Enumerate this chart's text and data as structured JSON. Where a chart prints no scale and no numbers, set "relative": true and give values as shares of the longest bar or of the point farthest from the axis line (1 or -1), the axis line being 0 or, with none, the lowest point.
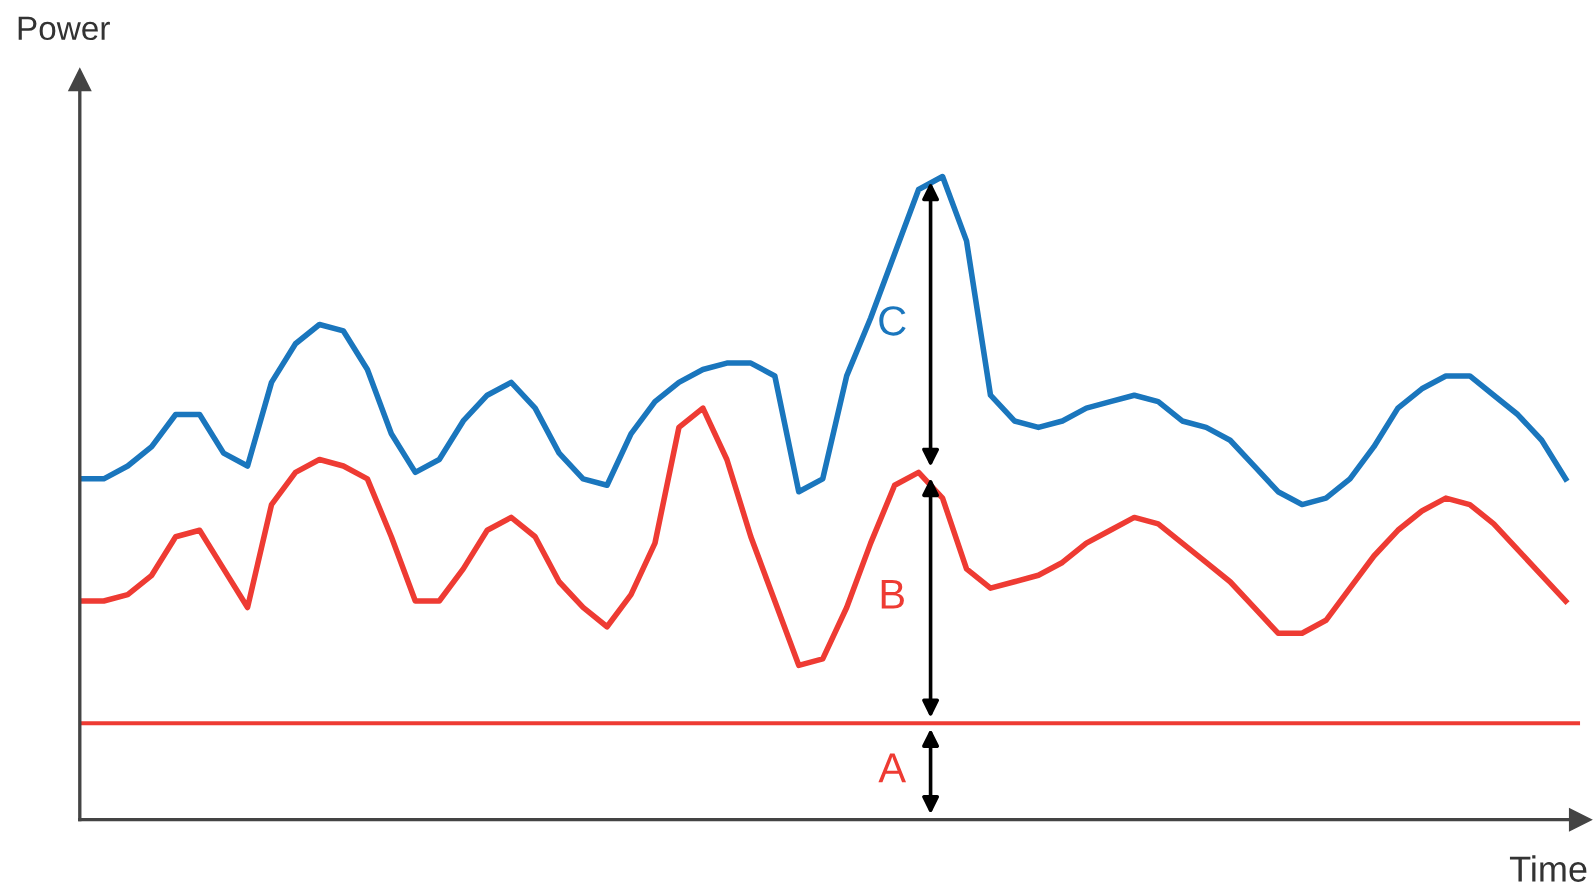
{
  "chart_data": {
    "type": "line",
    "relative": true,
    "xlabel": "Time",
    "ylabel": "Power",
    "categories": [
      null,
      null,
      null,
      null,
      null,
      null,
      null,
      null,
      null,
      null,
      null,
      null,
      null,
      null,
      null,
      null,
      null,
      null,
      null,
      null,
      null,
      null,
      null,
      null,
      null,
      null,
      null,
      null,
      null,
      null,
      null,
      null,
      null,
      null,
      null,
      null,
      null,
      null,
      null,
      null,
      null,
      null,
      null,
      null,
      null,
      null,
      null,
      null,
      null,
      null,
      null,
      null,
      null,
      null,
      null,
      null,
      null,
      null,
      null,
      null,
      null,
      null,
      null
    ],
    "series": [
      {
        "color": "#1a76bd",
        "values": [
          0.53,
          0.53,
          0.55,
          0.58,
          0.63,
          0.63,
          0.57,
          0.55,
          0.68,
          0.74,
          0.77,
          0.76,
          0.7,
          0.6,
          0.54,
          0.56,
          0.62,
          0.66,
          0.68,
          0.64,
          0.57,
          0.53,
          0.52,
          0.6,
          0.65,
          0.68,
          0.7,
          0.71,
          0.71,
          0.69,
          0.51,
          0.53,
          0.69,
          0.78,
          0.88,
          0.98,
          1.0,
          0.9,
          0.66,
          0.62,
          0.61,
          0.62,
          0.64,
          0.65,
          0.66,
          0.65,
          0.62,
          0.61,
          0.59,
          0.55,
          0.51,
          0.49,
          0.5,
          0.53,
          0.58,
          0.64,
          0.67,
          0.69,
          0.69,
          0.66,
          0.63,
          0.59,
          0.53
        ]
      },
      {
        "color": "#ee3b33",
        "values": [
          0.34,
          0.34,
          0.35,
          0.38,
          0.44,
          0.45,
          0.39,
          0.33,
          0.49,
          0.54,
          0.56,
          0.55,
          0.53,
          0.44,
          0.34,
          0.34,
          0.39,
          0.45,
          0.47,
          0.44,
          0.37,
          0.33,
          0.3,
          0.35,
          0.43,
          0.61,
          0.64,
          0.56,
          0.44,
          0.34,
          0.24,
          0.25,
          0.33,
          0.43,
          0.52,
          0.54,
          0.5,
          0.39,
          0.36,
          0.37,
          0.38,
          0.4,
          0.43,
          0.45,
          0.47,
          0.46,
          0.43,
          0.4,
          0.37,
          0.33,
          0.29,
          0.29,
          0.31,
          0.36,
          0.41,
          0.45,
          0.48,
          0.5,
          0.49,
          0.46,
          0.42,
          0.38,
          0.34
        ]
      }
    ],
    "ref_lines": [
      {
        "axis": "y",
        "value": 0.15,
        "color": "#ee3b33"
      }
    ],
    "annotations": [
      "A",
      "B",
      "C"
    ],
    "legend": false
  }
}
